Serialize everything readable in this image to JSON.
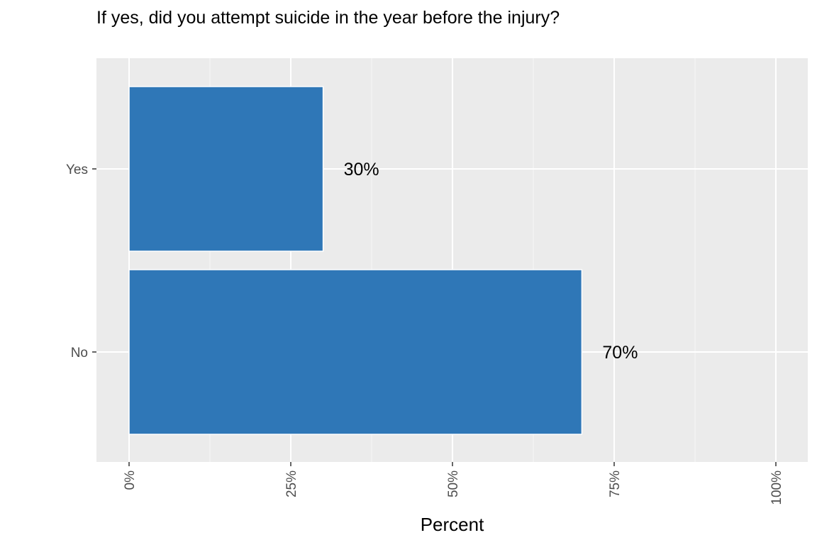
{
  "chart_data": {
    "type": "bar",
    "orientation": "horizontal",
    "title": "If yes, did you attempt suicide in the year before the injury?",
    "xlabel": "Percent",
    "ylabel": "",
    "categories": [
      "No",
      "Yes"
    ],
    "values": [
      70,
      30
    ],
    "data_labels": [
      "70%",
      "30%"
    ],
    "xlim": [
      0,
      100
    ],
    "x_ticks": [
      0,
      25,
      50,
      75,
      100
    ],
    "x_tick_labels": [
      "0%",
      "25%",
      "50%",
      "75%",
      "100%"
    ],
    "grid": true,
    "legend": "none",
    "colors": {
      "bar": "#2f77b7",
      "panel_background": "#ebebeb",
      "grid": "#ffffff"
    }
  }
}
